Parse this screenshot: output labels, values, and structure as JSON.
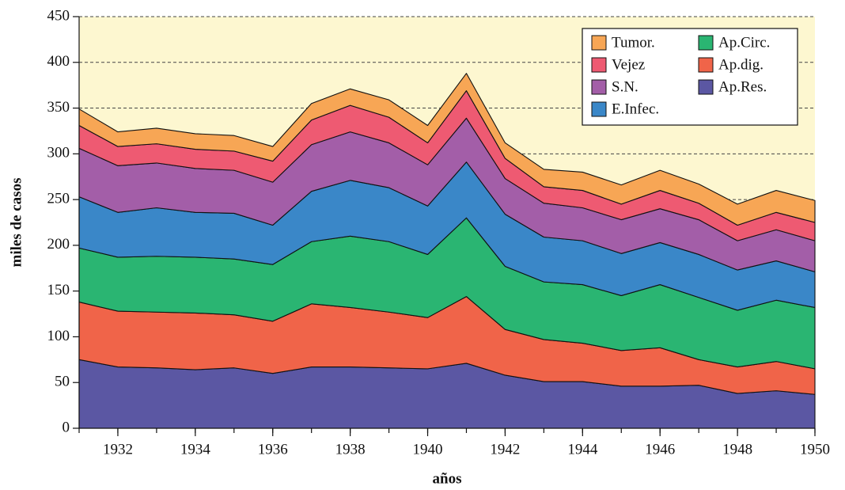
{
  "chart_data": {
    "type": "stacked_area",
    "x_label": "años",
    "y_label": "miles de casos",
    "x": [
      1931,
      1932,
      1933,
      1934,
      1935,
      1936,
      1937,
      1938,
      1939,
      1940,
      1941,
      1942,
      1943,
      1944,
      1945,
      1946,
      1947,
      1948,
      1949,
      1950
    ],
    "series": [
      {
        "name": "Ap.Res.",
        "color": "#5b57a3",
        "values": [
          75,
          67,
          66,
          64,
          66,
          60,
          67,
          67,
          66,
          65,
          71,
          58,
          51,
          51,
          46,
          46,
          47,
          38,
          41,
          37
        ]
      },
      {
        "name": "Ap.dig.",
        "color": "#f06449",
        "values": [
          63,
          61,
          61,
          62,
          58,
          57,
          69,
          65,
          61,
          56,
          73,
          50,
          46,
          42,
          39,
          42,
          28,
          29,
          32,
          28
        ]
      },
      {
        "name": "Ap.Circ.",
        "color": "#2ab572",
        "values": [
          59,
          59,
          61,
          61,
          61,
          62,
          68,
          78,
          77,
          69,
          86,
          69,
          63,
          64,
          60,
          69,
          68,
          62,
          67,
          67
        ]
      },
      {
        "name": "E.Infec.",
        "color": "#3a87c8",
        "values": [
          56,
          49,
          53,
          49,
          50,
          43,
          55,
          61,
          59,
          53,
          61,
          57,
          49,
          48,
          46,
          46,
          47,
          44,
          43,
          39
        ]
      },
      {
        "name": "S.N.",
        "color": "#a35ea8",
        "values": [
          53,
          51,
          49,
          48,
          47,
          47,
          51,
          53,
          49,
          45,
          48,
          39,
          37,
          36,
          37,
          37,
          38,
          32,
          34,
          34
        ]
      },
      {
        "name": "Vejez",
        "color": "#ee5a72",
        "values": [
          25,
          21,
          21,
          21,
          21,
          23,
          27,
          29,
          28,
          24,
          30,
          22,
          18,
          19,
          17,
          20,
          18,
          17,
          19,
          20
        ]
      },
      {
        "name": "Tumor.",
        "color": "#f7a655",
        "values": [
          18,
          16,
          17,
          17,
          17,
          16,
          18,
          18,
          19,
          19,
          19,
          17,
          19,
          20,
          21,
          22,
          21,
          23,
          24,
          24
        ]
      }
    ],
    "xlim": [
      1931,
      1950
    ],
    "xticks": [
      1932,
      1934,
      1936,
      1938,
      1940,
      1942,
      1944,
      1946,
      1948,
      1950
    ],
    "ylim": [
      0,
      450
    ],
    "yticks": [
      0,
      50,
      100,
      150,
      200,
      250,
      300,
      350,
      400,
      450
    ],
    "grid": true,
    "background": "#fdf7d0",
    "legend": "upper right"
  }
}
